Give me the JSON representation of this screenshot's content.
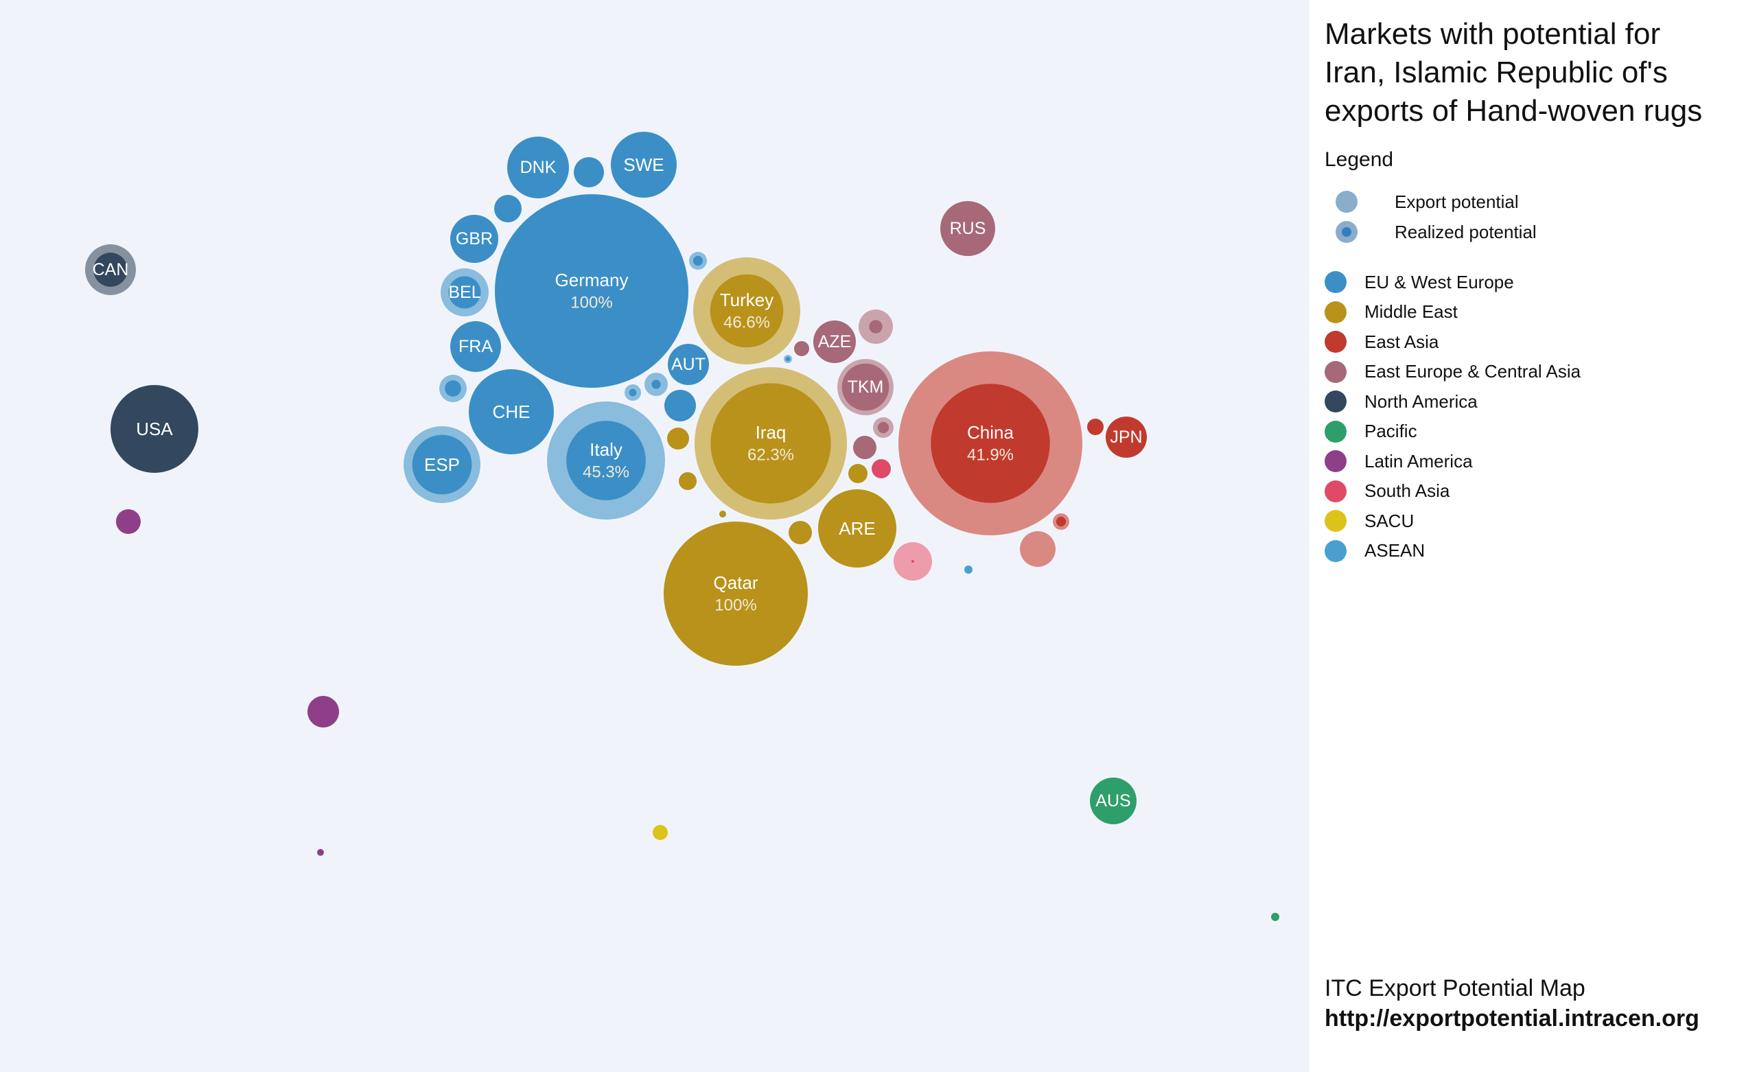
{
  "sidebar": {
    "title_lines": [
      "Markets with potential for",
      "Iran, Islamic Republic of's",
      "exports of Hand-woven rugs"
    ],
    "legend_heading": "Legend",
    "potential_legend": [
      {
        "label": "Export potential",
        "fill": "#8aadcc"
      },
      {
        "label": "Realized potential",
        "fill": "#8aadcc",
        "inner": "#2f7fc1"
      }
    ],
    "region_legend": [
      {
        "label": "EU & West Europe",
        "color": "#3b8fc6"
      },
      {
        "label": "Middle East",
        "color": "#b8921a"
      },
      {
        "label": "East Asia",
        "color": "#c13a2e"
      },
      {
        "label": "East Europe & Central Asia",
        "color": "#a76877"
      },
      {
        "label": "North America",
        "color": "#33475e"
      },
      {
        "label": "Pacific",
        "color": "#2e9f6a"
      },
      {
        "label": "Latin America",
        "color": "#8e3f87"
      },
      {
        "label": "South Asia",
        "color": "#df4b66"
      },
      {
        "label": "SACU",
        "color": "#ddc21a"
      },
      {
        "label": "ASEAN",
        "color": "#4a9fd1"
      }
    ],
    "footer_line1": "ITC Export Potential Map",
    "footer_url": "http://exportpotential.intracen.org"
  },
  "chart_data": {
    "type": "bubble",
    "title": "Markets with potential for Iran, Islamic Republic of's exports of Hand-woven rugs",
    "size_encoding": "Export potential (outer circle) and realized potential (inner circle)",
    "markets": [
      {
        "label": "Germany",
        "pct": "100%",
        "region": "EU & West Europe",
        "potential": 100,
        "realized": 100
      },
      {
        "label": "Qatar",
        "pct": "100%",
        "region": "Middle East",
        "potential": 100,
        "realized": 100
      },
      {
        "label": "China",
        "pct": "41.9%",
        "region": "East Asia",
        "potential": 100,
        "realized": 41.9
      },
      {
        "label": "Iraq",
        "pct": "62.3%",
        "region": "Middle East",
        "potential": 100,
        "realized": 62.3
      },
      {
        "label": "Italy",
        "pct": "45.3%",
        "region": "EU & West Europe",
        "potential": 100,
        "realized": 45.3
      },
      {
        "label": "Turkey",
        "pct": "46.6%",
        "region": "Middle East",
        "potential": 100,
        "realized": 46.6
      },
      {
        "label": "USA",
        "pct": "",
        "region": "North America",
        "potential": 100,
        "realized": 100
      },
      {
        "label": "CHE",
        "pct": "",
        "region": "EU & West Europe",
        "potential": 100,
        "realized": 100
      },
      {
        "label": "ARE",
        "pct": "",
        "region": "Middle East",
        "potential": 100,
        "realized": 100
      },
      {
        "label": "ESP",
        "pct": "",
        "region": "EU & West Europe",
        "potential": 100,
        "realized": 60
      },
      {
        "label": "DNK",
        "pct": "",
        "region": "EU & West Europe",
        "potential": 100,
        "realized": 100
      },
      {
        "label": "SWE",
        "pct": "",
        "region": "EU & West Europe",
        "potential": 100,
        "realized": 100
      },
      {
        "label": "RUS",
        "pct": "",
        "region": "East Europe & Central Asia",
        "potential": 100,
        "realized": 100
      },
      {
        "label": "TKM",
        "pct": "",
        "region": "East Europe & Central Asia",
        "potential": 100,
        "realized": 70
      },
      {
        "label": "CAN",
        "pct": "",
        "region": "North America",
        "potential": 100,
        "realized": 45
      },
      {
        "label": "GBR",
        "pct": "",
        "region": "EU & West Europe",
        "potential": 100,
        "realized": 100
      },
      {
        "label": "FRA",
        "pct": "",
        "region": "EU & West Europe",
        "potential": 100,
        "realized": 100
      },
      {
        "label": "BEL",
        "pct": "",
        "region": "EU & West Europe",
        "potential": 100,
        "realized": 45
      },
      {
        "label": "AUT",
        "pct": "",
        "region": "EU & West Europe",
        "potential": 100,
        "realized": 100
      },
      {
        "label": "AZE",
        "pct": "",
        "region": "East Europe & Central Asia",
        "potential": 100,
        "realized": 100
      },
      {
        "label": "JPN",
        "pct": "",
        "region": "East Asia",
        "potential": 100,
        "realized": 100
      },
      {
        "label": "AUS",
        "pct": "",
        "region": "Pacific",
        "potential": 100,
        "realized": 100
      }
    ]
  }
}
